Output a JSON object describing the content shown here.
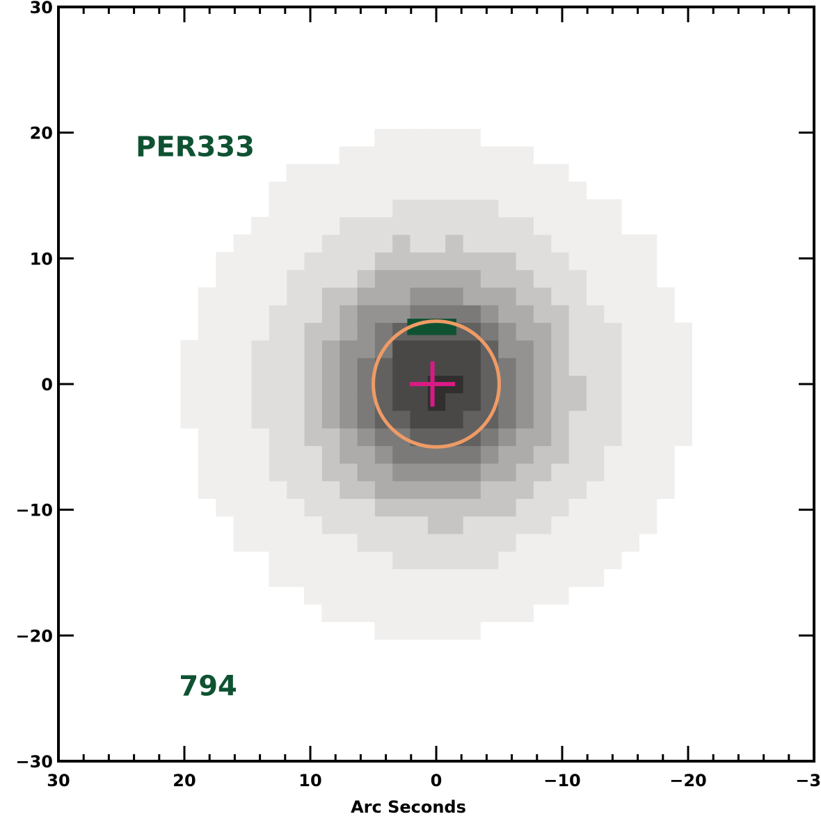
{
  "chart_data": {
    "type": "heatmap",
    "title": "",
    "xlabel": "Arc Seconds",
    "ylabel": "",
    "xlim": [
      30,
      -30
    ],
    "ylim": [
      -30,
      30
    ],
    "x_ticks": [
      30,
      20,
      10,
      0,
      -10,
      -20,
      -30
    ],
    "y_ticks": [
      30,
      20,
      10,
      0,
      -10,
      -20,
      -30
    ],
    "x_tick_labels": [
      "30",
      "20",
      "10",
      "0",
      "−10",
      "−20",
      "−30"
    ],
    "y_tick_labels": [
      "30",
      "20",
      "10",
      "0",
      "−10",
      "−20",
      "−30"
    ],
    "image": {
      "colormap": "grayscale-inverted",
      "center": [
        0,
        0
      ],
      "pixel_size_arcsec": 1.4,
      "peak_darkness": 0.86,
      "extent_radius_arcsec": 20,
      "description_levels": 9
    },
    "annotations": {
      "source_name": "PER333",
      "source_name_pos": [
        20,
        19
      ],
      "count": "794",
      "count_pos": [
        16,
        -24
      ],
      "annotation_color": "#0f5232"
    },
    "aperture": {
      "center": [
        0,
        0
      ],
      "radius_arcsec": 5,
      "color": "#ef9b66"
    },
    "marker": {
      "center": [
        0.3,
        0
      ],
      "half_size_arcsec": 1.8,
      "color": "#d81b84"
    },
    "bar": {
      "x_range": [
        2.3,
        -1.6
      ],
      "y_range": [
        3.9,
        5.2
      ],
      "color": "#0f5232"
    }
  }
}
